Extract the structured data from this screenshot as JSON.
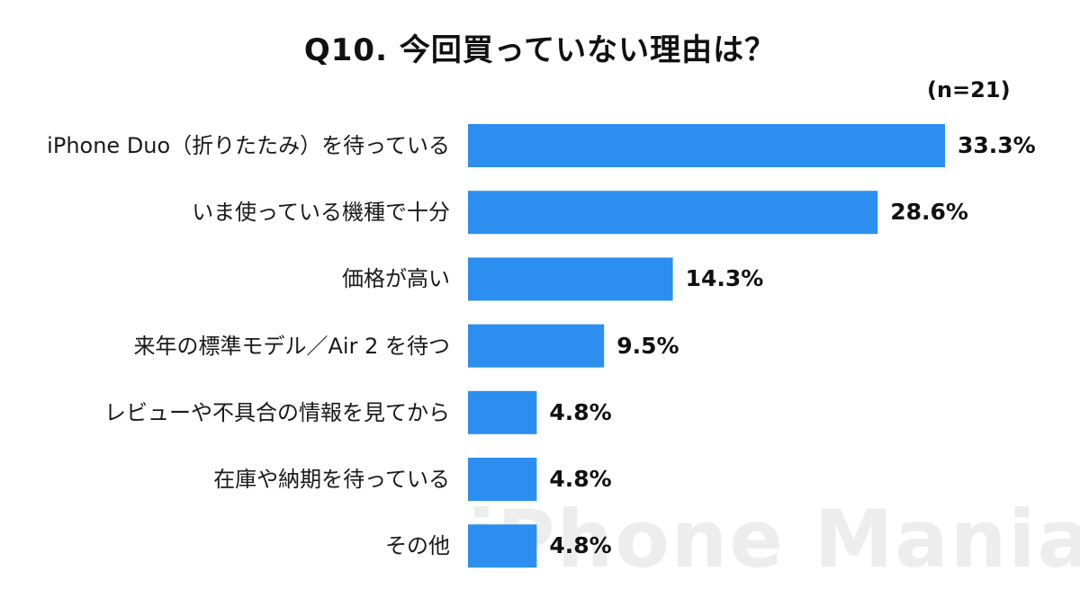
{
  "watermark": "iPhone Mania",
  "chart_data": {
    "type": "bar",
    "orientation": "horizontal",
    "title": "Q10. 今回買っていない理由は？",
    "sample_size_label": "(n=21)",
    "categories": [
      "iPhone Duo（折りたたみ）を待っている",
      "いま使っている機種で十分",
      "価格が高い",
      "来年の標準モデル／Air 2 を待つ",
      "レビューや不具合の情報を見てから",
      "在庫や納期を待っている",
      "その他"
    ],
    "values": [
      33.3,
      28.6,
      14.3,
      9.5,
      4.8,
      4.8,
      4.8
    ],
    "value_labels": [
      "33.3%",
      "28.6%",
      "14.3%",
      "9.5%",
      "4.8%",
      "4.8%",
      "4.8%"
    ],
    "unit": "%",
    "xlim": [
      0,
      33.3
    ],
    "bar_color": "#2c8ff0",
    "grid": false,
    "legend": "none"
  }
}
